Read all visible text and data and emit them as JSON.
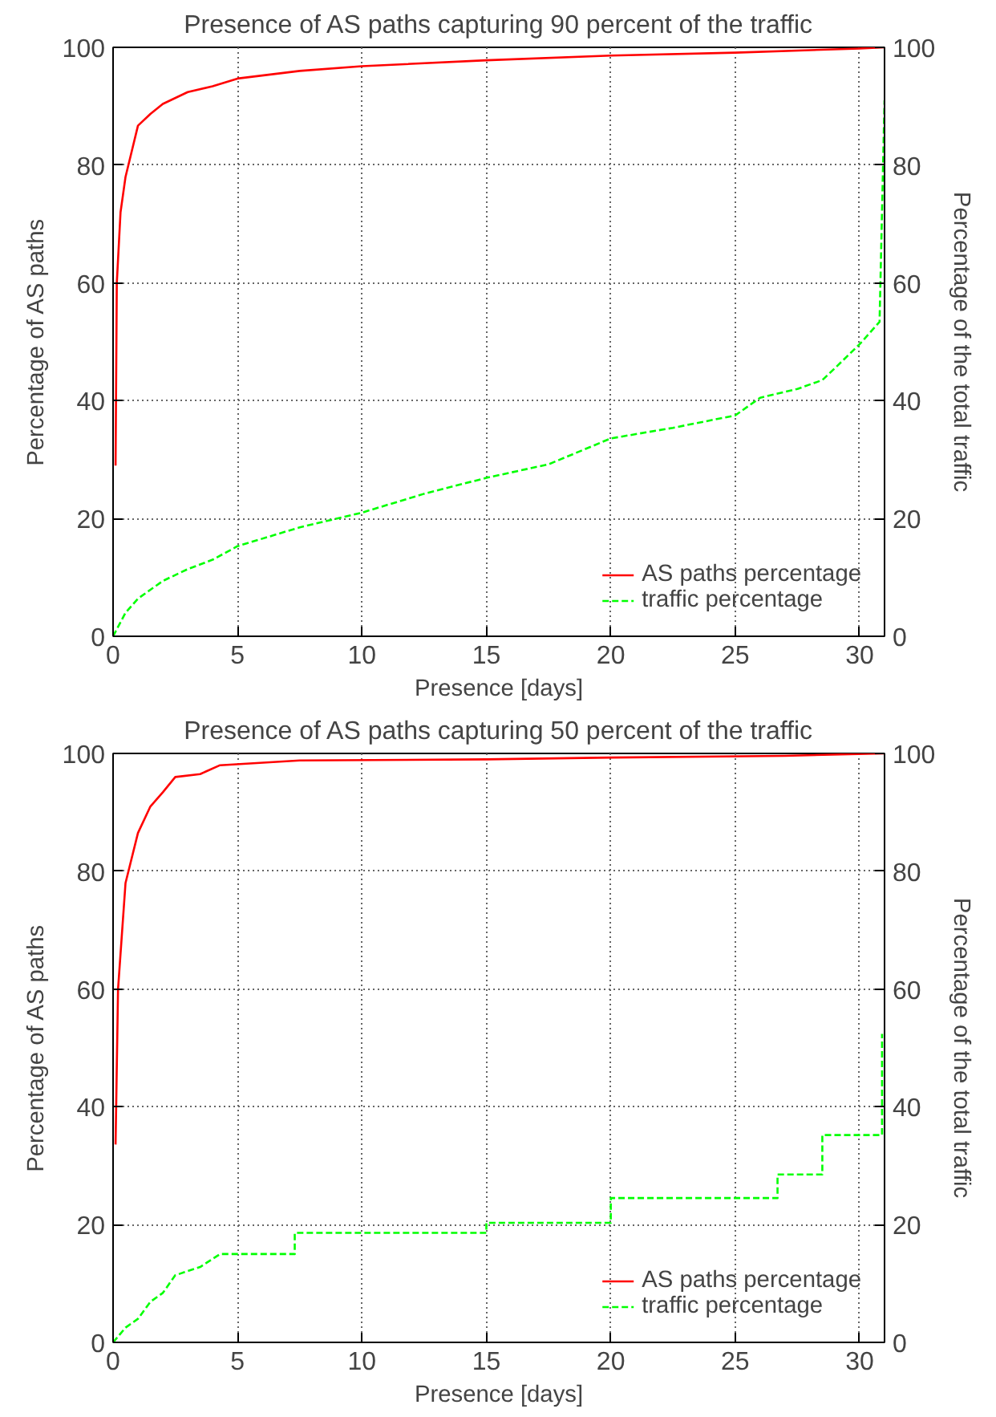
{
  "chart_data": [
    {
      "type": "line",
      "title": "Presence of AS paths capturing 90 percent of the traffic",
      "xlabel": "Presence [days]",
      "ylabel": "Percentage of AS paths",
      "y2label": "Percentage of the total traffic",
      "xlim": [
        0,
        31
      ],
      "xticks": [
        0,
        5,
        10,
        15,
        20,
        25,
        30
      ],
      "ylim": [
        0,
        100
      ],
      "yticks": [
        0,
        20,
        40,
        60,
        80,
        100
      ],
      "y2lim": [
        0,
        100
      ],
      "y2ticks": [
        0,
        20,
        40,
        60,
        80,
        100
      ],
      "grid": true,
      "legend": "bottom right",
      "series": [
        {
          "name": "AS paths percentage",
          "color": "#ff0000",
          "line_style": "solid",
          "x": [
            0.1,
            0.15,
            0.3,
            0.5,
            1,
            1.5,
            2,
            3,
            4,
            5,
            7.5,
            10,
            15,
            20,
            25,
            30,
            31
          ],
          "values": [
            29,
            60,
            72,
            78,
            86.7,
            88.7,
            90.4,
            92.4,
            93.4,
            94.7,
            96,
            96.8,
            97.8,
            98.6,
            99.1,
            99.8,
            100
          ]
        },
        {
          "name": "traffic percentage",
          "color": "#00ff00",
          "line_style": "dashed",
          "axis": "y2",
          "x": [
            0,
            0.5,
            1,
            1.5,
            2,
            3,
            4,
            5,
            7.5,
            10,
            12.5,
            15,
            17.5,
            20,
            22.5,
            25,
            26,
            27.5,
            28.5,
            29,
            30,
            30.8,
            31
          ],
          "values": [
            0,
            4,
            6.4,
            7.9,
            9.4,
            11.4,
            13,
            15.3,
            18.5,
            21,
            24.2,
            26.9,
            29.2,
            33.6,
            35.4,
            37.5,
            40.5,
            42,
            43.5,
            45.5,
            49.6,
            53.4,
            91
          ]
        }
      ]
    },
    {
      "type": "line",
      "title": "Presence of AS paths capturing 50 percent of the traffic",
      "xlabel": "Presence [days]",
      "ylabel": "Percentage of AS paths",
      "y2label": "Percentage of the total traffic",
      "xlim": [
        0,
        31
      ],
      "xticks": [
        0,
        5,
        10,
        15,
        20,
        25,
        30
      ],
      "ylim": [
        0,
        100
      ],
      "yticks": [
        0,
        20,
        40,
        60,
        80,
        100
      ],
      "y2lim": [
        0,
        100
      ],
      "y2ticks": [
        0,
        20,
        40,
        60,
        80,
        100
      ],
      "grid": true,
      "legend": "bottom right",
      "series": [
        {
          "name": "AS paths percentage",
          "color": "#ff0000",
          "line_style": "solid",
          "x": [
            0.1,
            0.2,
            0.5,
            1,
            1.5,
            2,
            2.5,
            3.5,
            4.3,
            7.5,
            15,
            20,
            27,
            31
          ],
          "values": [
            33.6,
            60,
            78,
            86.5,
            91,
            93.4,
            96,
            96.5,
            98,
            98.8,
            99,
            99.3,
            99.6,
            100
          ]
        },
        {
          "name": "traffic percentage",
          "color": "#00ff00",
          "line_style": "dashed",
          "axis": "y2",
          "x": [
            0,
            0.5,
            1,
            1.5,
            2,
            2.5,
            3.5,
            4.3,
            7.3,
            7.3,
            15,
            15,
            20,
            20,
            26.7,
            26.7,
            28.5,
            28.5,
            30.9,
            30.9
          ],
          "values": [
            0,
            2.5,
            4,
            6.9,
            8.4,
            11.4,
            12.8,
            15,
            15,
            18.6,
            18.6,
            20.3,
            20.3,
            24.5,
            24.5,
            28.5,
            28.5,
            35.2,
            35.2,
            52.4
          ]
        }
      ]
    }
  ]
}
